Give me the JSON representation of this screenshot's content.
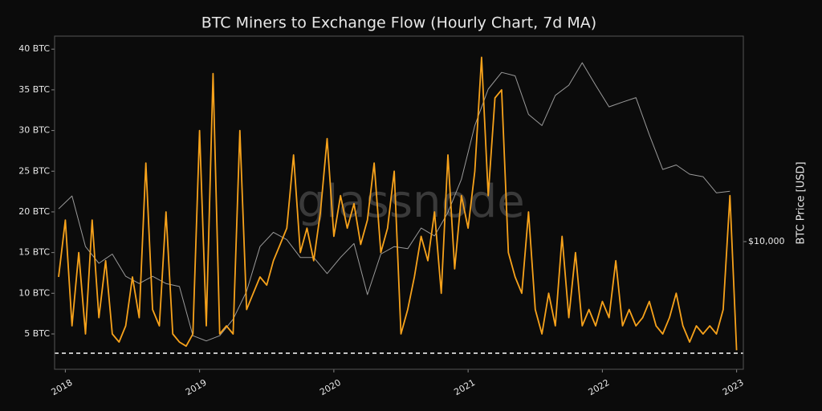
{
  "chart_data": {
    "type": "line",
    "title": "BTC Miners to Exchange Flow (Hourly Chart, 7d MA)",
    "watermark": "glassnode",
    "y2label": "BTC Price [USD]",
    "xlim": [
      2017.92,
      2023.05
    ],
    "xticks": [
      2018,
      2019,
      2020,
      2021,
      2022,
      2023
    ],
    "ylim": [
      0.66,
      41.6
    ],
    "yticks": [
      {
        "value": 5,
        "label": "5 BTC"
      },
      {
        "value": 10,
        "label": "10 BTC"
      },
      {
        "value": 15,
        "label": "15 BTC"
      },
      {
        "value": 20,
        "label": "20 BTC"
      },
      {
        "value": 25,
        "label": "25 BTC"
      },
      {
        "value": 30,
        "label": "30 BTC"
      },
      {
        "value": 35,
        "label": "35 BTC"
      },
      {
        "value": 40,
        "label": "40 BTC"
      }
    ],
    "y2lim": [
      2690,
      82800
    ],
    "y2log": true,
    "y2ticks": [
      {
        "value": 10000,
        "label": "$10,000"
      }
    ],
    "hline": 2.63,
    "hline_color": "#ffffff",
    "series": [
      {
        "name": "BTC Price",
        "axis": "y2",
        "color": "#9a9a9a",
        "x": [
          2017.95,
          2018.05,
          2018.15,
          2018.25,
          2018.35,
          2018.45,
          2018.55,
          2018.65,
          2018.75,
          2018.85,
          2018.95,
          2019.05,
          2019.15,
          2019.25,
          2019.35,
          2019.45,
          2019.55,
          2019.65,
          2019.75,
          2019.85,
          2019.95,
          2020.05,
          2020.15,
          2020.25,
          2020.35,
          2020.45,
          2020.55,
          2020.65,
          2020.75,
          2020.85,
          2020.95,
          2021.05,
          2021.15,
          2021.25,
          2021.35,
          2021.45,
          2021.55,
          2021.65,
          2021.75,
          2021.85,
          2021.95,
          2022.05,
          2022.15,
          2022.25,
          2022.35,
          2022.45,
          2022.55,
          2022.65,
          2022.75,
          2022.85,
          2022.95
        ],
        "values": [
          14000,
          16000,
          9500,
          8000,
          8800,
          7000,
          6500,
          7000,
          6500,
          6300,
          3800,
          3600,
          3800,
          4500,
          6000,
          9500,
          11000,
          10200,
          8500,
          8500,
          7200,
          8500,
          9800,
          5800,
          8800,
          9500,
          9300,
          11500,
          10600,
          13500,
          19000,
          33000,
          48000,
          57000,
          55000,
          37000,
          33000,
          45000,
          50000,
          63000,
          50000,
          40000,
          42000,
          44000,
          30000,
          21000,
          22000,
          20000,
          19500,
          16500,
          16800
        ]
      },
      {
        "name": "Miners to Exchange Flow",
        "color": "#f7a21b",
        "x": [
          2017.95,
          2018.0,
          2018.05,
          2018.1,
          2018.15,
          2018.2,
          2018.25,
          2018.3,
          2018.35,
          2018.4,
          2018.45,
          2018.5,
          2018.55,
          2018.6,
          2018.65,
          2018.7,
          2018.75,
          2018.8,
          2018.85,
          2018.9,
          2018.95,
          2019.0,
          2019.05,
          2019.1,
          2019.15,
          2019.2,
          2019.25,
          2019.3,
          2019.35,
          2019.4,
          2019.45,
          2019.5,
          2019.55,
          2019.6,
          2019.65,
          2019.7,
          2019.75,
          2019.8,
          2019.85,
          2019.9,
          2019.95,
          2020.0,
          2020.05,
          2020.1,
          2020.15,
          2020.2,
          2020.25,
          2020.3,
          2020.35,
          2020.4,
          2020.45,
          2020.5,
          2020.55,
          2020.6,
          2020.65,
          2020.7,
          2020.75,
          2020.8,
          2020.85,
          2020.9,
          2020.95,
          2021.0,
          2021.05,
          2021.1,
          2021.15,
          2021.2,
          2021.25,
          2021.3,
          2021.35,
          2021.4,
          2021.45,
          2021.5,
          2021.55,
          2021.6,
          2021.65,
          2021.7,
          2021.75,
          2021.8,
          2021.85,
          2021.9,
          2021.95,
          2022.0,
          2022.05,
          2022.1,
          2022.15,
          2022.2,
          2022.25,
          2022.3,
          2022.35,
          2022.4,
          2022.45,
          2022.5,
          2022.55,
          2022.6,
          2022.65,
          2022.7,
          2022.75,
          2022.8,
          2022.85,
          2022.9,
          2022.95,
          2023.0
        ],
        "values": [
          12,
          19,
          6,
          15,
          5,
          19,
          7,
          14,
          5,
          4,
          6,
          12,
          7,
          26,
          8,
          6,
          20,
          5,
          4,
          3.5,
          5,
          30,
          6,
          37,
          5,
          6,
          5,
          30,
          8,
          10,
          12,
          11,
          14,
          16,
          18,
          27,
          15,
          18,
          14,
          20,
          29,
          17,
          22,
          18,
          21,
          16,
          19,
          26,
          15,
          18,
          25,
          5,
          8,
          12,
          17,
          14,
          20,
          10,
          27,
          13,
          22,
          18,
          25,
          39,
          22,
          34,
          35,
          15,
          12,
          10,
          20,
          8,
          5,
          10,
          6,
          17,
          7,
          15,
          6,
          8,
          6,
          9,
          7,
          14,
          6,
          8,
          6,
          7,
          9,
          6,
          5,
          7,
          10,
          6,
          4,
          6,
          5,
          6,
          5,
          8,
          22,
          3
        ]
      }
    ]
  }
}
